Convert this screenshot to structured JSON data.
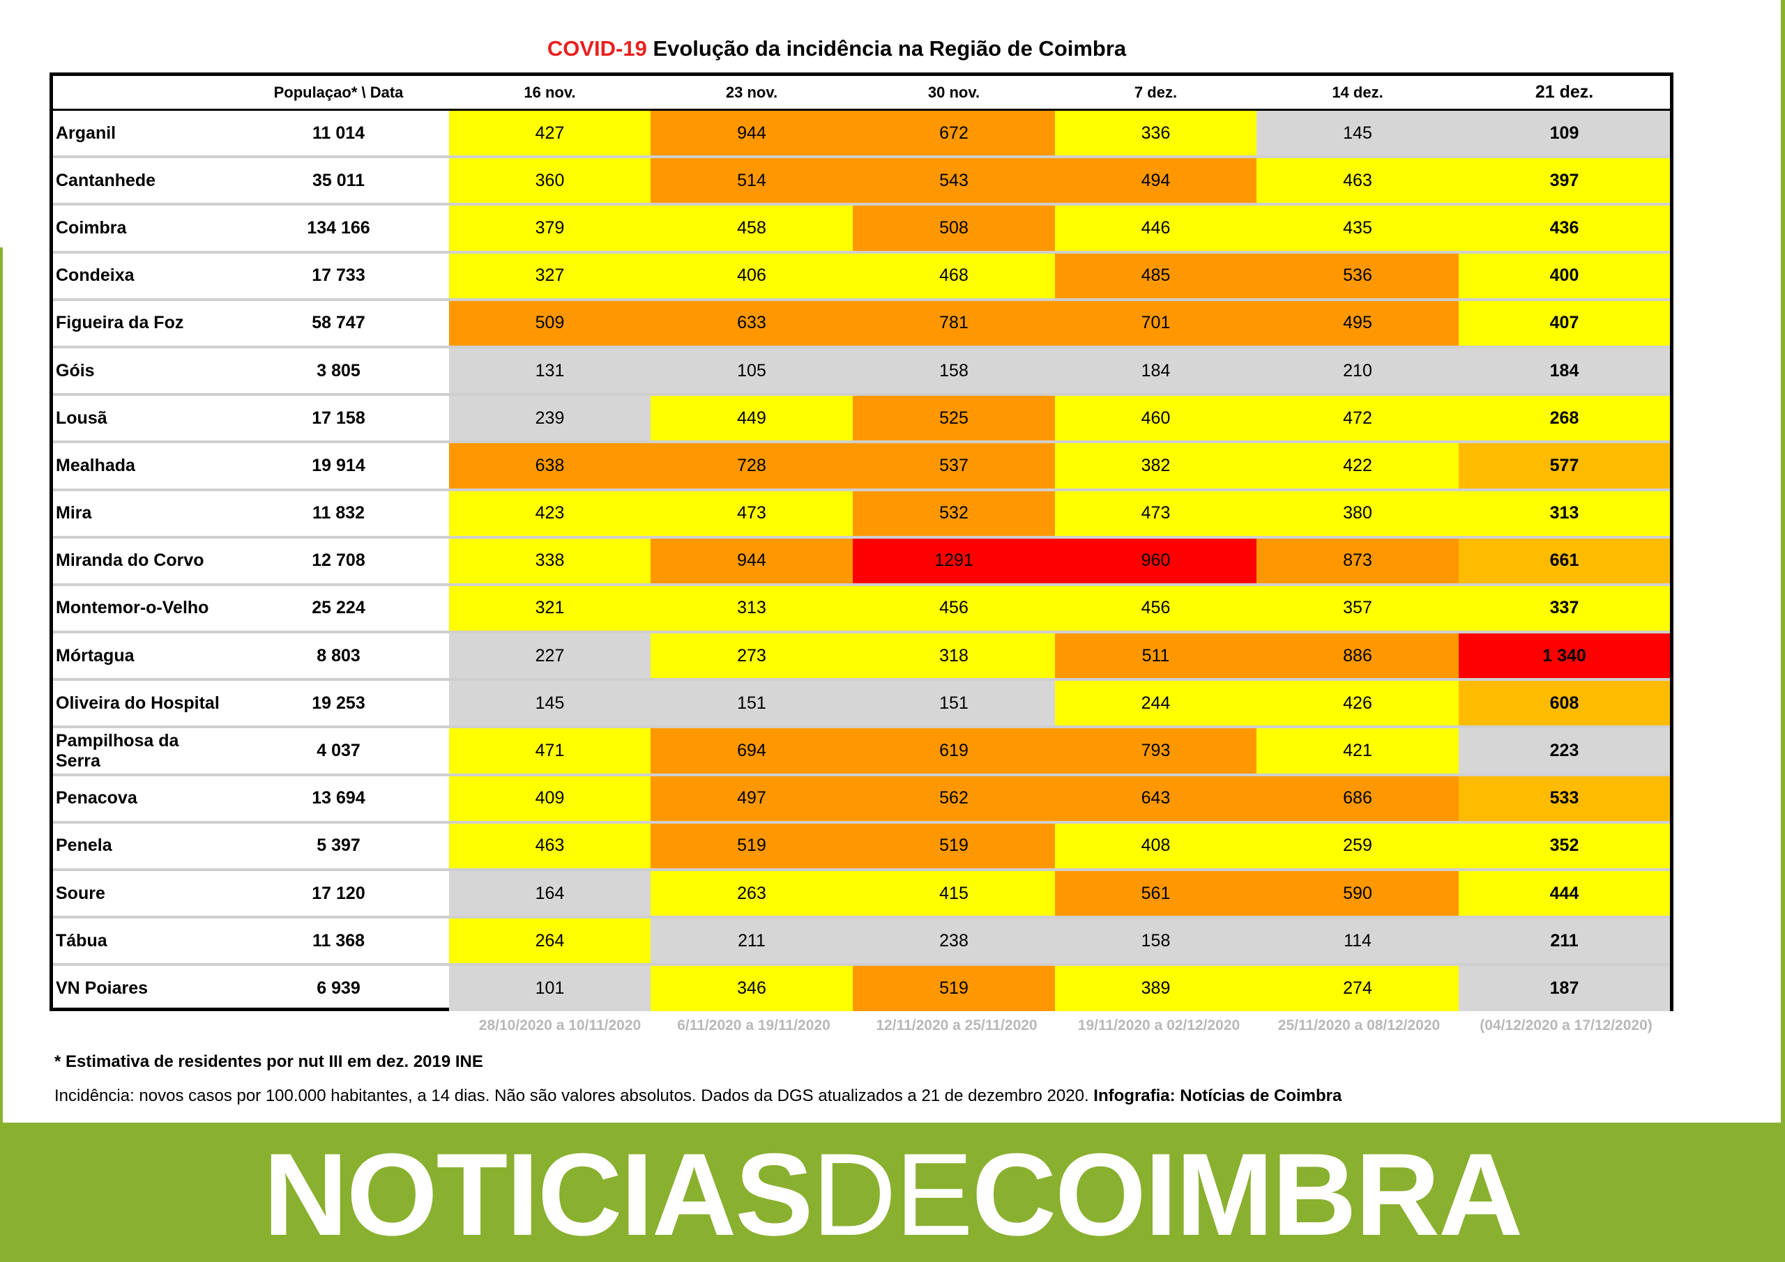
{
  "title": {
    "highlight": "COVID-19",
    "rest": "Evolução da incidência na Região de Coimbra"
  },
  "header": {
    "population_label": "Populaçao* \\ Data",
    "dates": [
      "16 nov.",
      "23 nov.",
      "30 nov.",
      "7 dez.",
      "14 dez.",
      "21 dez."
    ]
  },
  "colors": {
    "gray": "#d6d6d6",
    "yellow": "#ffff00",
    "orange": "#ff9800",
    "amber": "#ffbb00",
    "red": "#ff0000",
    "brand_green": "#8ab030",
    "title_red": "#e8201f"
  },
  "rows": [
    {
      "name": "Arganil",
      "population": "11 014",
      "values": [
        "427",
        "944",
        "672",
        "336",
        "145",
        "109"
      ],
      "levels": [
        "yellow",
        "orange",
        "orange",
        "yellow",
        "gray",
        "gray"
      ]
    },
    {
      "name": "Cantanhede",
      "population": "35 011",
      "values": [
        "360",
        "514",
        "543",
        "494",
        "463",
        "397"
      ],
      "levels": [
        "yellow",
        "orange",
        "orange",
        "orange",
        "yellow",
        "yellow"
      ]
    },
    {
      "name": "Coimbra",
      "population": "134 166",
      "values": [
        "379",
        "458",
        "508",
        "446",
        "435",
        "436"
      ],
      "levels": [
        "yellow",
        "yellow",
        "orange",
        "yellow",
        "yellow",
        "yellow"
      ]
    },
    {
      "name": "Condeixa",
      "population": "17 733",
      "values": [
        "327",
        "406",
        "468",
        "485",
        "536",
        "400"
      ],
      "levels": [
        "yellow",
        "yellow",
        "yellow",
        "orange",
        "orange",
        "yellow"
      ]
    },
    {
      "name": "Figueira da Foz",
      "population": "58 747",
      "values": [
        "509",
        "633",
        "781",
        "701",
        "495",
        "407"
      ],
      "levels": [
        "orange",
        "orange",
        "orange",
        "orange",
        "orange",
        "yellow"
      ]
    },
    {
      "name": "Góis",
      "population": "3 805",
      "values": [
        "131",
        "105",
        "158",
        "184",
        "210",
        "184"
      ],
      "levels": [
        "gray",
        "gray",
        "gray",
        "gray",
        "gray",
        "gray"
      ]
    },
    {
      "name": "Lousã",
      "population": "17 158",
      "values": [
        "239",
        "449",
        "525",
        "460",
        "472",
        "268"
      ],
      "levels": [
        "gray",
        "yellow",
        "orange",
        "yellow",
        "yellow",
        "yellow"
      ]
    },
    {
      "name": "Mealhada",
      "population": "19 914",
      "values": [
        "638",
        "728",
        "537",
        "382",
        "422",
        "577"
      ],
      "levels": [
        "orange",
        "orange",
        "orange",
        "yellow",
        "yellow",
        "amber"
      ]
    },
    {
      "name": "Mira",
      "population": "11 832",
      "values": [
        "423",
        "473",
        "532",
        "473",
        "380",
        "313"
      ],
      "levels": [
        "yellow",
        "yellow",
        "orange",
        "yellow",
        "yellow",
        "yellow"
      ]
    },
    {
      "name": "Miranda do Corvo",
      "population": "12 708",
      "values": [
        "338",
        "944",
        "1291",
        "960",
        "873",
        "661"
      ],
      "levels": [
        "yellow",
        "orange",
        "red",
        "red",
        "orange",
        "amber"
      ]
    },
    {
      "name": "Montemor-o-Velho",
      "population": "25 224",
      "values": [
        "321",
        "313",
        "456",
        "456",
        "357",
        "337"
      ],
      "levels": [
        "yellow",
        "yellow",
        "yellow",
        "yellow",
        "yellow",
        "yellow"
      ]
    },
    {
      "name": "Mórtagua",
      "population": "8 803",
      "values": [
        "227",
        "273",
        "318",
        "511",
        "886",
        "1 340"
      ],
      "levels": [
        "gray",
        "yellow",
        "yellow",
        "orange",
        "orange",
        "red"
      ]
    },
    {
      "name": "Oliveira do Hospital",
      "population": "19 253",
      "values": [
        "145",
        "151",
        "151",
        "244",
        "426",
        "608"
      ],
      "levels": [
        "gray",
        "gray",
        "gray",
        "yellow",
        "yellow",
        "amber"
      ]
    },
    {
      "name": "Pampilhosa da Serra",
      "population": "4 037",
      "values": [
        "471",
        "694",
        "619",
        "793",
        "421",
        "223"
      ],
      "levels": [
        "yellow",
        "orange",
        "orange",
        "orange",
        "yellow",
        "gray"
      ]
    },
    {
      "name": "Penacova",
      "population": "13 694",
      "values": [
        "409",
        "497",
        "562",
        "643",
        "686",
        "533"
      ],
      "levels": [
        "yellow",
        "orange",
        "orange",
        "orange",
        "orange",
        "amber"
      ]
    },
    {
      "name": "Penela",
      "population": "5 397",
      "values": [
        "463",
        "519",
        "519",
        "408",
        "259",
        "352"
      ],
      "levels": [
        "yellow",
        "orange",
        "orange",
        "yellow",
        "yellow",
        "yellow"
      ]
    },
    {
      "name": "Soure",
      "population": "17 120",
      "values": [
        "164",
        "263",
        "415",
        "561",
        "590",
        "444"
      ],
      "levels": [
        "gray",
        "yellow",
        "yellow",
        "orange",
        "orange",
        "yellow"
      ]
    },
    {
      "name": "Tábua",
      "population": "11 368",
      "values": [
        "264",
        "211",
        "238",
        "158",
        "114",
        "211"
      ],
      "levels": [
        "yellow",
        "gray",
        "gray",
        "gray",
        "gray",
        "gray"
      ]
    },
    {
      "name": "VN Poiares",
      "population": "6 939",
      "values": [
        "101",
        "346",
        "519",
        "389",
        "274",
        "187"
      ],
      "levels": [
        "gray",
        "yellow",
        "orange",
        "yellow",
        "yellow",
        "gray"
      ]
    }
  ],
  "periods": [
    "28/10/2020 a 10/11/2020",
    "6/11/2020 a 19/11/2020",
    "12/11/2020 a 25/11/2020",
    "19/11/2020 a 02/12/2020",
    "25/11/2020 a 08/12/2020",
    "(04/12/2020 a 17/12/2020)"
  ],
  "footnote": "* Estimativa de residentes por nut III em dez. 2019 INE",
  "source": {
    "text": "Incidência: novos casos por 100.000 habitantes, a 14 dias. Não são valores absolutos. Dados da DGS atualizados a 21 de dezembro 2020.",
    "credit": "Infografia: Notícias de Coimbra"
  },
  "banner": {
    "part1": "NOTICIAS",
    "part2": "DE",
    "part3": "COIMBRA"
  }
}
